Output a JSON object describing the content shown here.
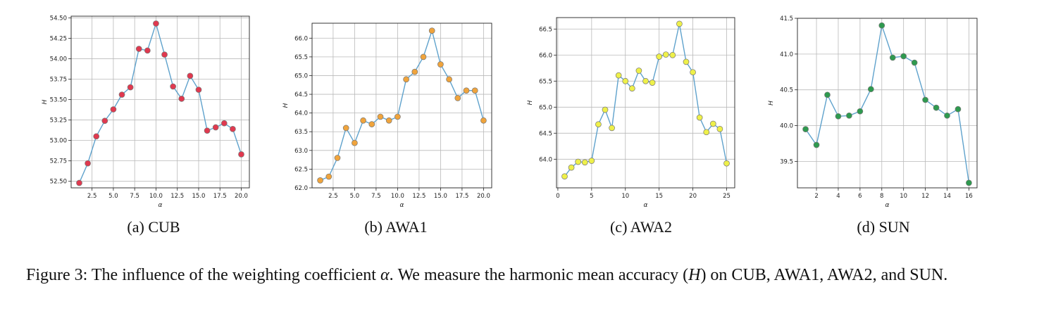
{
  "colors": {
    "line": "#5fa2cc",
    "grid": "#b9b9b9",
    "axis": "#222222"
  },
  "chart_data": [
    {
      "type": "line",
      "subcaption": "(a) CUB",
      "xlabel": "α",
      "ylabel": "H",
      "xlim": [
        0.05,
        20.95
      ],
      "ylim": [
        52.42,
        54.52
      ],
      "xticks": [
        2.5,
        5.0,
        7.5,
        10.0,
        12.5,
        15.0,
        17.5,
        20.0
      ],
      "xtick_labels": [
        "2.5",
        "5.0",
        "7.5",
        "10.0",
        "12.5",
        "15.0",
        "17.5",
        "20.0"
      ],
      "yticks": [
        52.5,
        52.75,
        53.0,
        53.25,
        53.5,
        53.75,
        54.0,
        54.25,
        54.5
      ],
      "ytick_labels": [
        "52.50",
        "52.75",
        "53.00",
        "53.25",
        "53.50",
        "53.75",
        "54.00",
        "54.25",
        "54.50"
      ],
      "grid": true,
      "marker_color": "#e0394f",
      "x": [
        1,
        2,
        3,
        4,
        5,
        6,
        7,
        8,
        9,
        10,
        11,
        12,
        13,
        14,
        15,
        16,
        17,
        18,
        19,
        20
      ],
      "y": [
        52.48,
        52.72,
        53.05,
        53.24,
        53.38,
        53.56,
        53.65,
        54.12,
        54.1,
        54.43,
        54.05,
        53.66,
        53.51,
        53.79,
        53.62,
        53.12,
        53.16,
        53.21,
        53.14,
        52.83
      ]
    },
    {
      "type": "line",
      "subcaption": "(b) AWA1",
      "xlabel": "α",
      "ylabel": "H",
      "xlim": [
        0.05,
        20.95
      ],
      "ylim": [
        62.0,
        66.4
      ],
      "xticks": [
        2.5,
        5.0,
        7.5,
        10.0,
        12.5,
        15.0,
        17.5,
        20.0
      ],
      "xtick_labels": [
        "2.5",
        "5.0",
        "7.5",
        "10.0",
        "12.5",
        "15.0",
        "17.5",
        "20.0"
      ],
      "yticks": [
        62.0,
        62.5,
        63.0,
        63.5,
        64.0,
        64.5,
        65.0,
        65.5,
        66.0
      ],
      "ytick_labels": [
        "62.0",
        "62.5",
        "63.0",
        "63.5",
        "64.0",
        "64.5",
        "65.0",
        "65.5",
        "66.0"
      ],
      "grid": true,
      "marker_color": "#f0a43c",
      "x": [
        1,
        2,
        3,
        4,
        5,
        6,
        7,
        8,
        9,
        10,
        11,
        12,
        13,
        14,
        15,
        16,
        17,
        18,
        19,
        20
      ],
      "y": [
        62.2,
        62.3,
        62.8,
        63.6,
        63.2,
        63.8,
        63.7,
        63.9,
        63.8,
        63.9,
        64.9,
        65.1,
        65.5,
        66.2,
        65.3,
        64.9,
        64.4,
        64.6,
        64.6,
        63.8
      ]
    },
    {
      "type": "line",
      "subcaption": "(c) AWA2",
      "xlabel": "α",
      "ylabel": "H",
      "xlim": [
        -0.2,
        26.2
      ],
      "ylim": [
        63.45,
        66.72
      ],
      "xticks": [
        0,
        5,
        10,
        15,
        20,
        25
      ],
      "xtick_labels": [
        "0",
        "5",
        "10",
        "15",
        "20",
        "25"
      ],
      "yticks": [
        64.0,
        64.5,
        65.0,
        65.5,
        66.0,
        66.5
      ],
      "ytick_labels": [
        "64.0",
        "64.5",
        "65.0",
        "65.5",
        "66.0",
        "66.5"
      ],
      "grid": true,
      "marker_color": "#eef04a",
      "x": [
        1,
        2,
        3,
        4,
        5,
        6,
        7,
        8,
        9,
        10,
        11,
        12,
        13,
        14,
        15,
        16,
        17,
        18,
        19,
        20,
        21,
        22,
        23,
        24,
        25
      ],
      "y": [
        63.67,
        63.84,
        63.95,
        63.94,
        63.97,
        64.67,
        64.95,
        64.6,
        65.61,
        65.5,
        65.36,
        65.7,
        65.5,
        65.47,
        65.97,
        66.01,
        66.0,
        66.6,
        65.87,
        65.67,
        64.8,
        64.52,
        64.68,
        64.58,
        63.92
      ]
    },
    {
      "type": "line",
      "subcaption": "(d) SUN",
      "xlabel": "α",
      "ylabel": "H",
      "xlim": [
        0.25,
        16.75
      ],
      "ylim": [
        39.13,
        41.5
      ],
      "xticks": [
        2,
        4,
        6,
        8,
        10,
        12,
        14,
        16
      ],
      "xtick_labels": [
        "2",
        "4",
        "6",
        "8",
        "10",
        "12",
        "14",
        "16"
      ],
      "yticks": [
        39.5,
        40.0,
        40.5,
        41.0,
        41.5
      ],
      "ytick_labels": [
        "39.5",
        "40.0",
        "40.5",
        "41.0",
        "41.5"
      ],
      "grid": true,
      "marker_color": "#2e9a4f",
      "x": [
        1,
        2,
        3,
        4,
        5,
        6,
        7,
        8,
        9,
        10,
        11,
        12,
        13,
        14,
        15,
        16
      ],
      "y": [
        39.95,
        39.73,
        40.43,
        40.13,
        40.14,
        40.2,
        40.51,
        41.4,
        40.95,
        40.97,
        40.88,
        40.36,
        40.25,
        40.14,
        40.23,
        39.2
      ]
    }
  ],
  "caption": {
    "lead": "Figure 3: The influence of the weighting coefficient ",
    "alpha": "α",
    "middle": ". We measure the harmonic mean accuracy (",
    "h": "H",
    "tail": ") on CUB, AWA1, AWA2, and SUN."
  }
}
